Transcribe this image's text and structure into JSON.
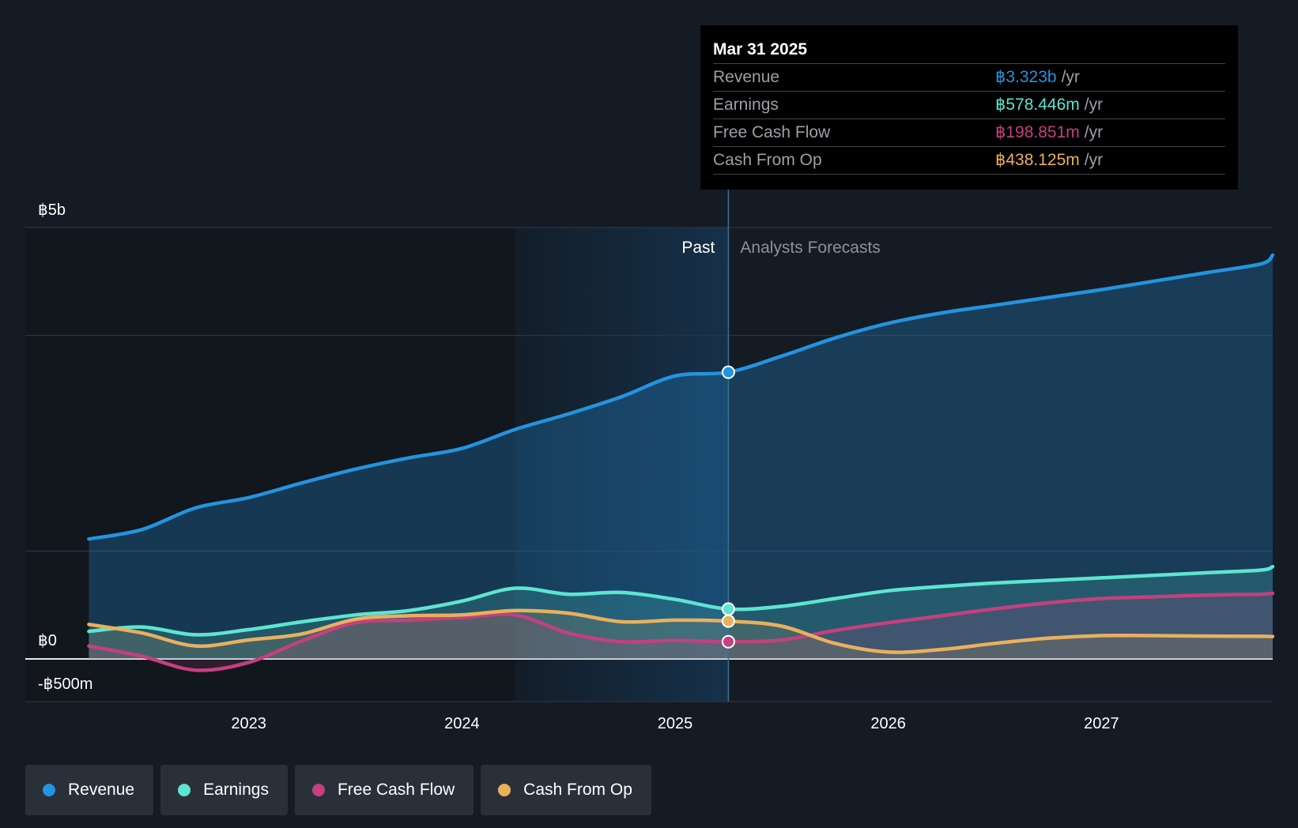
{
  "chart_data": {
    "type": "area",
    "currency_symbol": "฿",
    "y_axis_labels": [
      "฿5b",
      "฿0",
      "-฿500m"
    ],
    "ylim": [
      -500,
      5000
    ],
    "y_unit": "millions THB",
    "x_ticks": [
      "2023",
      "2024",
      "2025",
      "2026",
      "2027"
    ],
    "x_tick_values": [
      2023,
      2024,
      2025,
      2026,
      2027
    ],
    "xlim": [
      2022.0,
      2028.0
    ],
    "past_label": "Past",
    "forecast_label": "Analysts Forecasts",
    "divider_x": 2025.25,
    "shaded_start_x": 2024.25,
    "series": [
      {
        "name": "Revenue",
        "color": "#2394df",
        "x": [
          2022.25,
          2022.5,
          2022.75,
          2023.0,
          2023.25,
          2023.5,
          2023.75,
          2024.0,
          2024.25,
          2024.5,
          2024.75,
          2025.0,
          2025.25,
          2025.5,
          2025.75,
          2026.0,
          2026.25,
          2026.5,
          2026.75,
          2027.0,
          2027.25,
          2027.5,
          2027.75,
          2028.0
        ],
        "values": [
          1390,
          1500,
          1750,
          1870,
          2040,
          2200,
          2330,
          2440,
          2660,
          2840,
          3040,
          3280,
          3323,
          3510,
          3720,
          3890,
          4010,
          4100,
          4190,
          4280,
          4380,
          4480,
          4580,
          4680
        ]
      },
      {
        "name": "Earnings",
        "color": "#5de5d2",
        "x": [
          2022.25,
          2022.5,
          2022.75,
          2023.0,
          2023.25,
          2023.5,
          2023.75,
          2024.0,
          2024.25,
          2024.5,
          2024.75,
          2025.0,
          2025.25,
          2025.5,
          2025.75,
          2026.0,
          2026.25,
          2026.5,
          2026.75,
          2027.0,
          2027.25,
          2027.5,
          2027.75,
          2028.0
        ],
        "values": [
          320,
          370,
          280,
          340,
          430,
          510,
          560,
          670,
          820,
          750,
          770,
          690,
          578,
          610,
          700,
          790,
          840,
          880,
          910,
          940,
          970,
          1000,
          1030,
          1070
        ]
      },
      {
        "name": "Free Cash Flow",
        "color": "#c4407f",
        "x": [
          2022.25,
          2022.5,
          2022.75,
          2023.0,
          2023.25,
          2023.5,
          2023.75,
          2024.0,
          2024.25,
          2024.5,
          2024.75,
          2025.0,
          2025.25,
          2025.5,
          2025.75,
          2026.0,
          2026.25,
          2026.5,
          2026.75,
          2027.0,
          2027.25,
          2027.5,
          2027.75,
          2028.0
        ],
        "values": [
          150,
          30,
          -130,
          -40,
          210,
          420,
          450,
          480,
          510,
          300,
          200,
          215,
          199,
          220,
          330,
          420,
          500,
          580,
          650,
          700,
          720,
          740,
          750,
          760
        ]
      },
      {
        "name": "Cash From Op",
        "color": "#e9b05c",
        "x": [
          2022.25,
          2022.5,
          2022.75,
          2023.0,
          2023.25,
          2023.5,
          2023.75,
          2024.0,
          2024.25,
          2024.5,
          2024.75,
          2025.0,
          2025.25,
          2025.5,
          2025.75,
          2026.0,
          2026.25,
          2026.5,
          2026.75,
          2027.0,
          2027.25,
          2027.5,
          2027.75,
          2028.0
        ],
        "values": [
          400,
          300,
          150,
          220,
          290,
          460,
          500,
          510,
          560,
          530,
          430,
          450,
          438,
          380,
          180,
          80,
          110,
          180,
          240,
          270,
          270,
          265,
          262,
          260
        ]
      }
    ],
    "markers_at_x": 2025.25
  },
  "tooltip": {
    "date": "Mar 31 2025",
    "rows": [
      {
        "name": "Revenue",
        "value": "฿3.323b",
        "unit": "/yr",
        "color": "#2394df"
      },
      {
        "name": "Earnings",
        "value": "฿578.446m",
        "unit": "/yr",
        "color": "#5de5d2"
      },
      {
        "name": "Free Cash Flow",
        "value": "฿198.851m",
        "unit": "/yr",
        "color": "#c4407f"
      },
      {
        "name": "Cash From Op",
        "value": "฿438.125m",
        "unit": "/yr",
        "color": "#e9b05c"
      }
    ]
  },
  "legend": [
    {
      "label": "Revenue",
      "color": "#2394df"
    },
    {
      "label": "Earnings",
      "color": "#5de5d2"
    },
    {
      "label": "Free Cash Flow",
      "color": "#c4407f"
    },
    {
      "label": "Cash From Op",
      "color": "#e9b05c"
    }
  ]
}
